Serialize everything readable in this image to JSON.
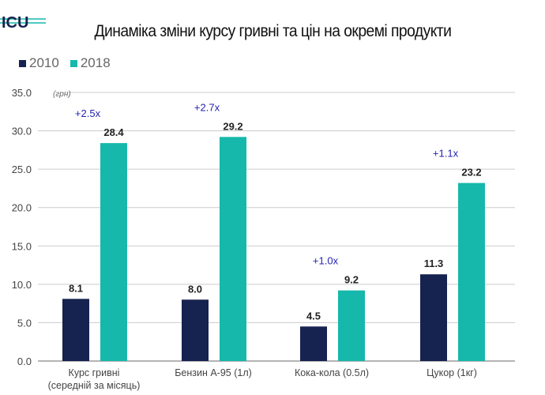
{
  "logo": {
    "text": "ICU",
    "icon": "icu-logo"
  },
  "colors": {
    "series_2010": "#16224f",
    "series_2018": "#16b8ab",
    "grid": "#cccccc",
    "annotation": "#2323b0",
    "axis_text": "#444444"
  },
  "chart_data": {
    "type": "bar",
    "title": "Динаміка зміни курсу гривні та цін на окремі продукти",
    "ylabel": "(грн)",
    "xlabel": "",
    "ylim": [
      0,
      35
    ],
    "yticks": [
      0,
      5,
      10,
      15,
      20,
      25,
      30,
      35
    ],
    "ytick_labels": [
      "0.0",
      "5.0",
      "10.0",
      "15.0",
      "20.0",
      "25.0",
      "30.0",
      "35.0"
    ],
    "grid": true,
    "legend_position": "top-left",
    "categories": [
      [
        "Курс гривні",
        "(середній за місяць)"
      ],
      [
        "Бензин А-95 (1л)"
      ],
      [
        "Кока-кола (0.5л)"
      ],
      [
        "Цукор (1кг)"
      ]
    ],
    "series": [
      {
        "name": "2010",
        "values": [
          8.1,
          8.0,
          4.5,
          11.3
        ],
        "labels": [
          "8.1",
          "8.0",
          "4.5",
          "11.3"
        ]
      },
      {
        "name": "2018",
        "values": [
          28.4,
          29.2,
          9.2,
          23.2
        ],
        "labels": [
          "28.4",
          "29.2",
          "9.2",
          "23.2"
        ]
      }
    ],
    "annotations": [
      "+2.5x",
      "+2.7x",
      "+1.0x",
      "+1.1x"
    ]
  }
}
